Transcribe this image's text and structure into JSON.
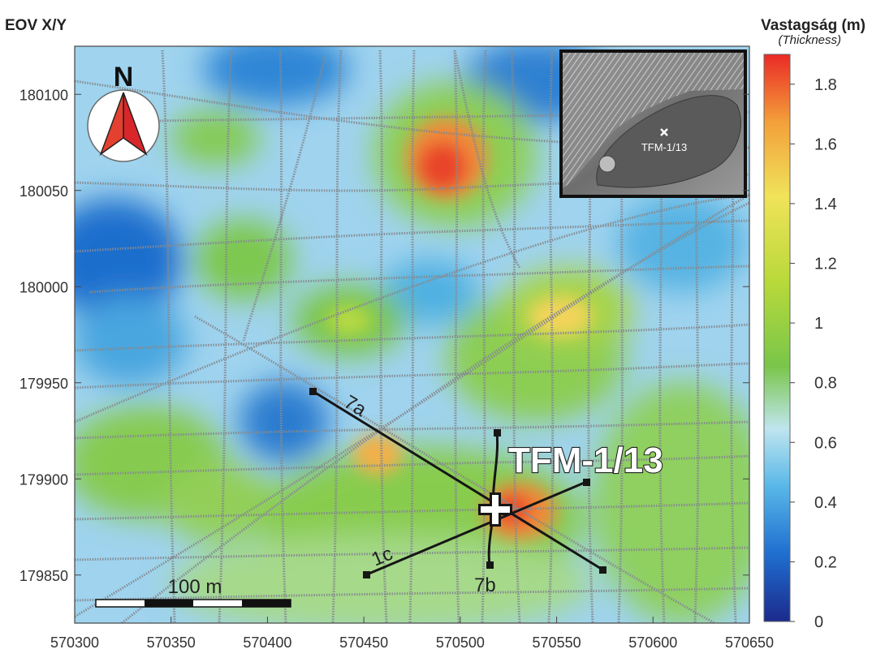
{
  "header": {
    "coord_system": "EOV X/Y",
    "legend_title": "Vastagság (m)",
    "legend_subtitle": "(Thickness)"
  },
  "map": {
    "x_range": [
      570300,
      570650
    ],
    "y_range": [
      179825,
      180125
    ],
    "x_ticks": [
      "570300",
      "570350",
      "570400",
      "570450",
      "570500",
      "570550",
      "570600",
      "570650"
    ],
    "y_ticks": [
      "180100",
      "180050",
      "180000",
      "179950",
      "179900",
      "179850"
    ],
    "north_label": "N",
    "scale_bar_label": "100 m",
    "borehole_label": "TFM-1/13",
    "profile_labels": [
      "7a",
      "1c",
      "7b"
    ]
  },
  "inset": {
    "label": "TFM-1/13"
  },
  "colorbar": {
    "ticks": [
      "1.8",
      "1.6",
      "1.4",
      "1.2",
      "1",
      "0.8",
      "0.6",
      "0.4",
      "0.2",
      "0"
    ],
    "min": 0,
    "max": 1.9,
    "colors": [
      "#1b2a8c",
      "#1f6fd0",
      "#5ab8e8",
      "#bfe5ef",
      "#79c64a",
      "#b9d93a",
      "#f0e35a",
      "#f3a03a",
      "#ea2a26"
    ]
  }
}
